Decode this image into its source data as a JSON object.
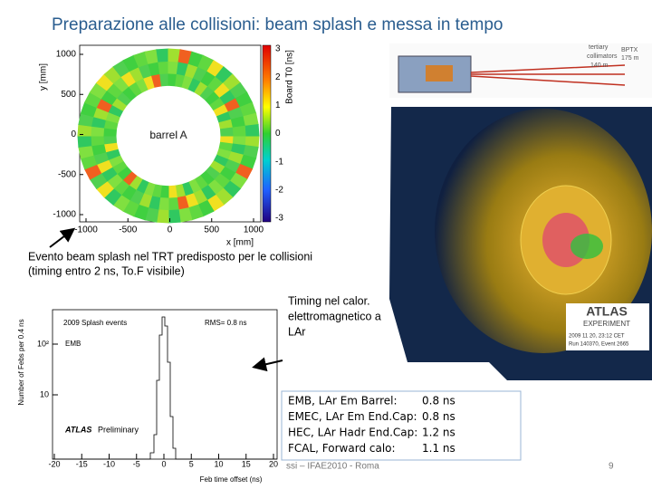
{
  "title": "Preparazione alle collisioni: beam splash e messa in tempo",
  "trt_plot": {
    "y_label": "y [mm]",
    "x_label": "x [mm]",
    "colorbar_label": "Board T0 [ns]",
    "label": "barrel A",
    "x_ticks": [
      "-1000",
      "-500",
      "0",
      "500",
      "1000"
    ],
    "y_ticks": [
      "1000",
      "500",
      "0",
      "-500",
      "-1000"
    ],
    "colorbar_ticks": [
      "3",
      "2",
      "1",
      "0",
      "-1",
      "-2",
      "-3"
    ]
  },
  "caption": [
    "Evento beam splash nel TRT predisposto per le collisioni",
    "(timing entro 2 ns, To.F visibile)"
  ],
  "event_display": {
    "collimators": [
      "tertiary",
      "collimators",
      "140 m"
    ],
    "bptx": [
      "BPTX",
      "175 m"
    ],
    "logo": [
      "ATLAS",
      "EXPERIMENT"
    ],
    "info": [
      "2009 11 20, 23:12 CET",
      "Run 140370, Event 2665"
    ]
  },
  "timing_note": [
    "Timing nel calor.",
    "elettromagnetico a",
    "LAr"
  ],
  "histogram": {
    "y_label": "Number of Febs per 0.4 ns",
    "x_label": "Feb time offset (ns)",
    "title": "2009 Splash events",
    "rms": "RMS= 0.8 ns",
    "region": "EMB",
    "atlas": "ATLAS",
    "preliminary": "Preliminary",
    "x_ticks": [
      "-20",
      "-15",
      "-10",
      "-5",
      "0",
      "5",
      "10",
      "15",
      "20"
    ],
    "y_ticks": [
      "10²",
      "10"
    ]
  },
  "table": {
    "rows": [
      [
        "EMB, LAr Em Barrel:",
        "0.8 ns"
      ],
      [
        "EMEC, LAr Em End.Cap:",
        "0.8 ns"
      ],
      [
        "HEC, LAr Hadr End.Cap:",
        "1.2 ns"
      ],
      [
        "FCAL, Forward calo:",
        "1.1 ns"
      ]
    ]
  },
  "footer": {
    "text": "ssi – IFAE2010 - Roma",
    "page": "9"
  }
}
